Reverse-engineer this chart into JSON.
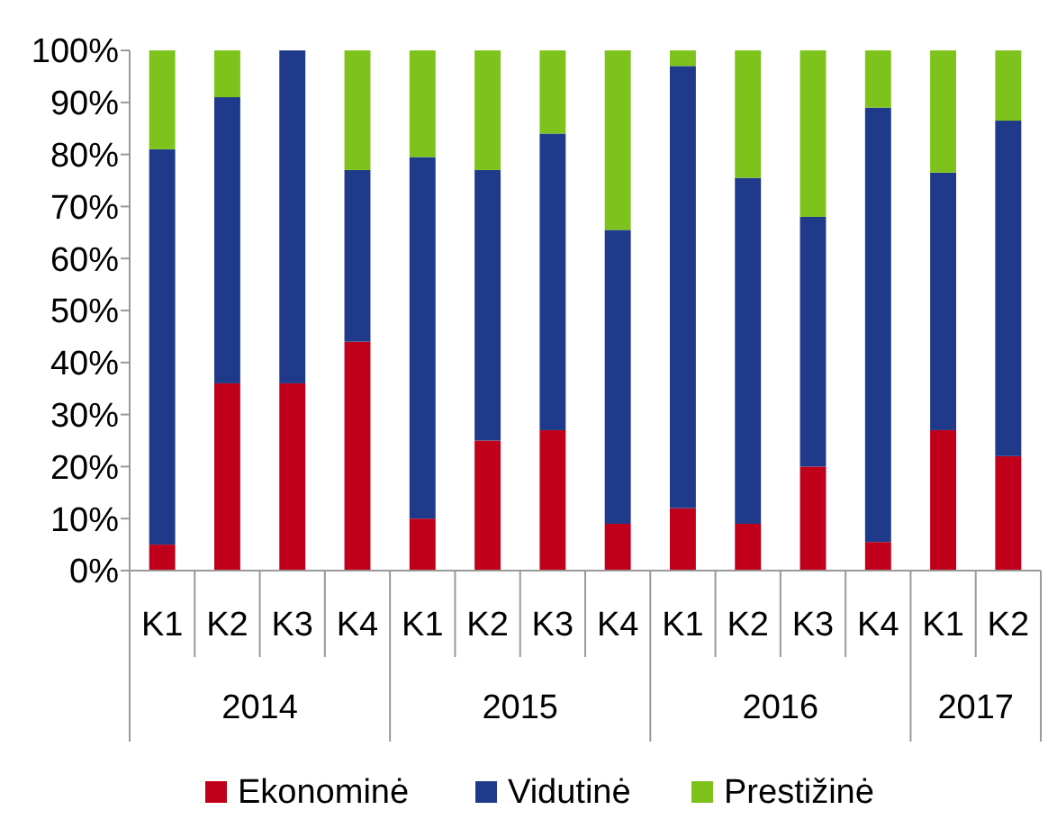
{
  "chart_data": {
    "type": "bar",
    "stacked": true,
    "categories": [
      "K1",
      "K2",
      "K3",
      "K4",
      "K1",
      "K2",
      "K3",
      "K4",
      "K1",
      "K2",
      "K3",
      "K4",
      "K1",
      "K2"
    ],
    "series": [
      {
        "name": "Ekonominė",
        "color": "#c0001a",
        "values": [
          5,
          36,
          36,
          44,
          10,
          25,
          27,
          9,
          12,
          9,
          20,
          5.5,
          27,
          22
        ]
      },
      {
        "name": "Vidutinė",
        "color": "#1f3a8a",
        "values": [
          76,
          55,
          64,
          33,
          69.5,
          52,
          57,
          56.5,
          85,
          66.5,
          48,
          83.5,
          49.5,
          64.5
        ]
      },
      {
        "name": "Prestižinė",
        "color": "#7dc31c",
        "values": [
          19,
          9,
          0,
          23,
          20.5,
          23,
          16,
          34.5,
          3,
          24.5,
          32,
          11,
          23.5,
          13.5
        ]
      }
    ],
    "ylim": [
      0,
      100
    ],
    "yticks": [
      {
        "value": 0,
        "label": "0%"
      },
      {
        "value": 10,
        "label": "10%"
      },
      {
        "value": 20,
        "label": "20%"
      },
      {
        "value": 30,
        "label": "30%"
      },
      {
        "value": 40,
        "label": "40%"
      },
      {
        "value": 50,
        "label": "50%"
      },
      {
        "value": 60,
        "label": "60%"
      },
      {
        "value": 70,
        "label": "70%"
      },
      {
        "value": 80,
        "label": "80%"
      },
      {
        "value": 90,
        "label": "90%"
      },
      {
        "value": 100,
        "label": "100%"
      }
    ],
    "annotations": [
      "2014",
      "2015",
      "2016",
      "2017"
    ],
    "legend": "bottom",
    "grid": false
  }
}
